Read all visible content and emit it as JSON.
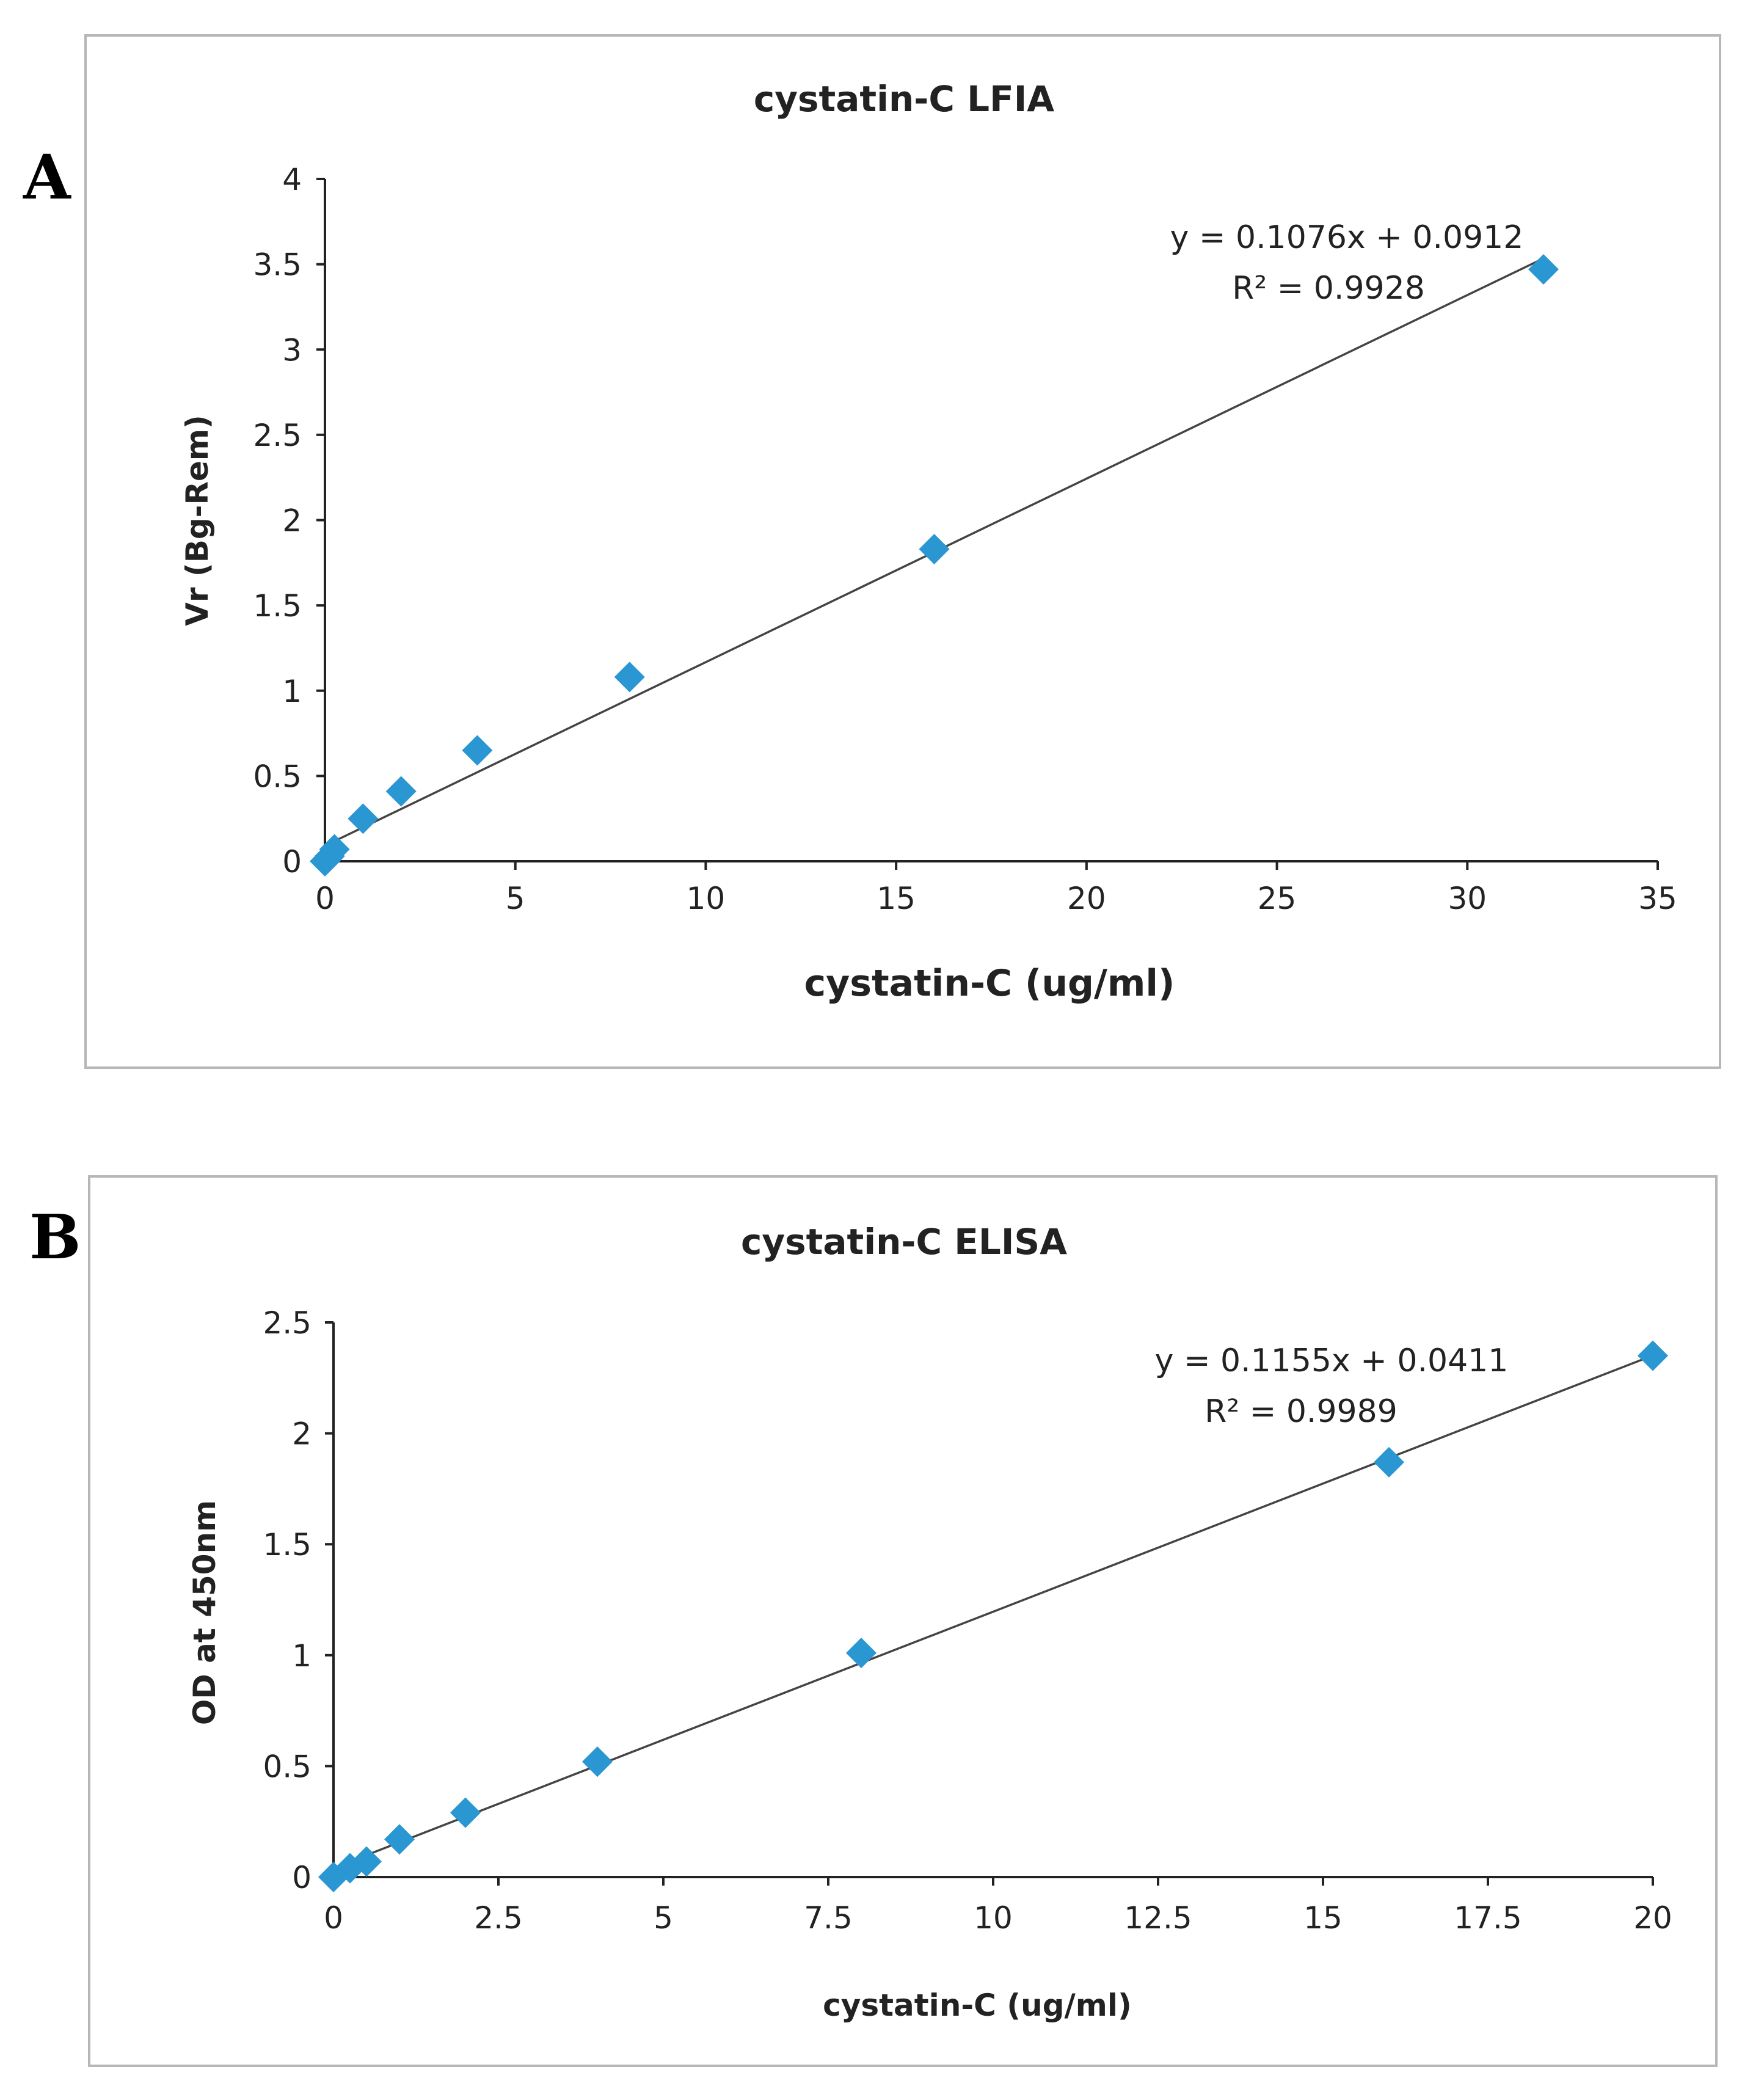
{
  "colors": {
    "marker": "#2a96d2",
    "trendline": "#444444",
    "axis": "#222222",
    "frame": "#b7b7b7"
  },
  "marker_shape": "diamond",
  "panels": [
    {
      "letter": "A",
      "chart_data": {
        "type": "scatter",
        "title": "cystatin-C LFIA",
        "xlabel": "cystatin-C (ug/ml)",
        "ylabel": "Vr (Bg-Rem)",
        "xlim": [
          0,
          35
        ],
        "ylim": [
          0,
          4
        ],
        "xticks": [
          "0",
          "5",
          "10",
          "15",
          "20",
          "25",
          "30",
          "35"
        ],
        "yticks": [
          "0",
          "0.5",
          "1",
          "1.5",
          "2",
          "2.5",
          "3",
          "3.5",
          "4"
        ],
        "grid": false,
        "legend": "none",
        "series": [
          {
            "x": [
              0,
              0.125,
              0.25,
              1,
              2,
              4,
              8,
              16,
              32
            ],
            "y": [
              0.0,
              0.03,
              0.07,
              0.25,
              0.41,
              0.65,
              1.08,
              1.83,
              3.47
            ]
          }
        ],
        "trendline": {
          "type": "linear",
          "slope": 0.1076,
          "intercept": 0.0912,
          "x_range": [
            0,
            32
          ],
          "equation": "y = 0.1076x + 0.0912",
          "r2_label": "R² = 0.9928"
        }
      }
    },
    {
      "letter": "B",
      "chart_data": {
        "type": "scatter",
        "title": "cystatin-C ELISA",
        "xlabel": "cystatin-C (ug/ml)",
        "ylabel": "OD at 450nm",
        "xlim": [
          0,
          20
        ],
        "ylim": [
          0,
          2.5
        ],
        "xticks": [
          "0",
          "2.5",
          "5",
          "7.5",
          "10",
          "12.5",
          "15",
          "17.5",
          "20"
        ],
        "yticks": [
          "0",
          "0.5",
          "1",
          "1.5",
          "2",
          "2.5"
        ],
        "grid": false,
        "legend": "none",
        "series": [
          {
            "x": [
              0,
              0.25,
              0.5,
              1,
              2,
              4,
              8,
              16,
              20
            ],
            "y": [
              0.0,
              0.04,
              0.07,
              0.17,
              0.29,
              0.52,
              1.01,
              1.87,
              2.35
            ]
          }
        ],
        "trendline": {
          "type": "linear",
          "slope": 0.1155,
          "intercept": 0.0411,
          "x_range": [
            0,
            20
          ],
          "equation": "y = 0.1155x + 0.0411",
          "r2_label": "R² = 0.9989"
        }
      }
    }
  ]
}
